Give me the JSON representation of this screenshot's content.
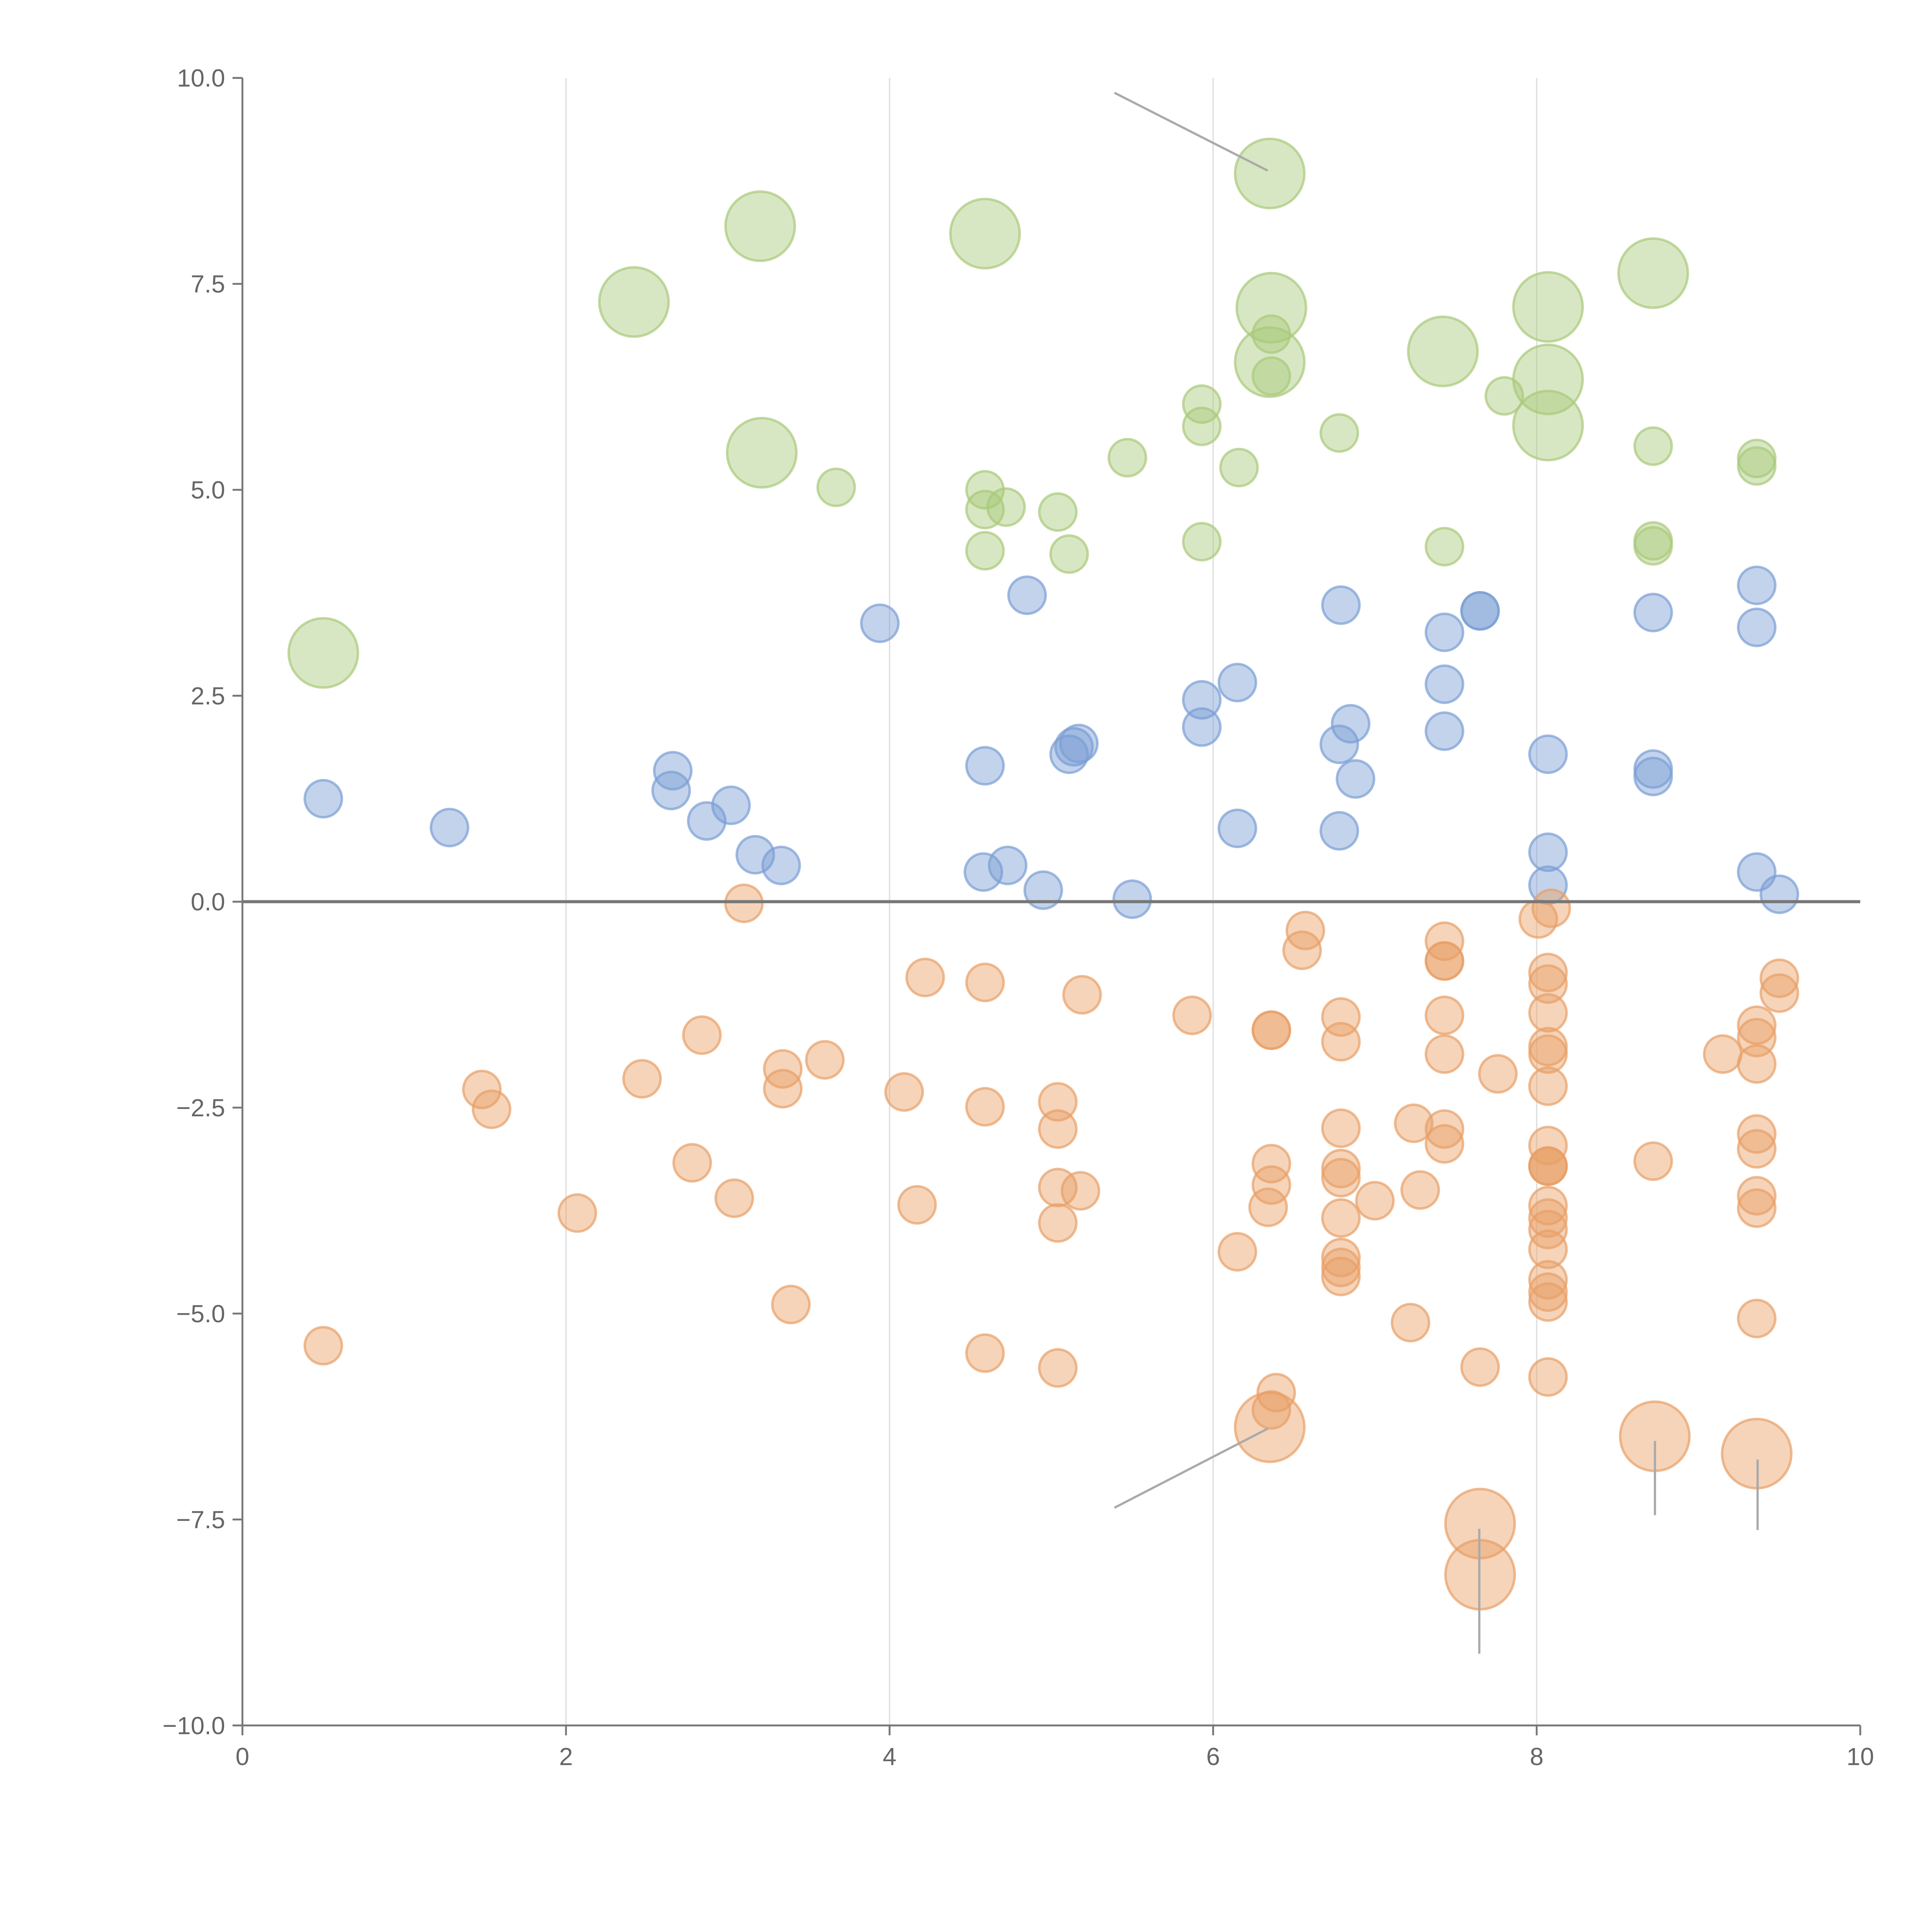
{
  "chart_data": {
    "type": "scatter",
    "title": "",
    "xlabel": "",
    "ylabel": "",
    "xlim": [
      0,
      10
    ],
    "ylim": [
      -10,
      10
    ],
    "grid": "vertical",
    "x_ticks": [
      "0",
      "2",
      "4",
      "6",
      "8",
      "10"
    ],
    "x_tick_values": [
      0,
      2,
      4,
      6,
      8,
      10
    ],
    "y_ticks": [
      "10.0",
      "7.5",
      "5.0",
      "2.5",
      "0.0",
      "−2.5",
      "−5.0",
      "−7.5",
      "−10.0"
    ],
    "y_tick_values": [
      10,
      7.5,
      5,
      2.5,
      0,
      -2.5,
      -5,
      -7.5,
      -10
    ],
    "reference_line_y": 0,
    "series": [
      {
        "name": "green",
        "color": "#a9c97a",
        "points": [
          [
            0.5,
            3.02,
            2
          ],
          [
            2.42,
            7.28,
            2
          ],
          [
            3.2,
            8.2,
            2
          ],
          [
            4.59,
            8.11,
            2
          ],
          [
            6.35,
            8.84,
            2
          ],
          [
            6.36,
            7.21,
            2
          ],
          [
            6.35,
            6.55,
            2
          ],
          [
            7.42,
            6.68,
            2
          ],
          [
            8.07,
            7.22,
            2
          ],
          [
            8.07,
            6.34,
            2
          ],
          [
            8.07,
            5.78,
            2
          ],
          [
            8.72,
            7.63,
            2
          ],
          [
            3.21,
            5.45,
            2
          ],
          [
            6.36,
            6.89,
            1
          ],
          [
            6.36,
            6.38,
            1
          ],
          [
            7.8,
            6.14,
            1
          ],
          [
            6.78,
            5.69,
            1
          ],
          [
            5.93,
            6.04,
            1
          ],
          [
            5.93,
            5.77,
            1
          ],
          [
            6.16,
            5.27,
            1
          ],
          [
            5.47,
            5.39,
            1
          ],
          [
            3.67,
            5.03,
            1
          ],
          [
            4.59,
            5.0,
            1
          ],
          [
            4.59,
            4.76,
            1
          ],
          [
            4.72,
            4.79,
            1
          ],
          [
            5.04,
            4.73,
            1
          ],
          [
            5.11,
            4.22,
            1
          ],
          [
            4.59,
            4.26,
            1
          ],
          [
            5.93,
            4.37,
            1
          ],
          [
            7.43,
            4.31,
            1
          ],
          [
            8.72,
            5.53,
            1
          ],
          [
            9.36,
            5.38,
            1
          ],
          [
            9.36,
            5.29,
            1
          ],
          [
            8.72,
            4.38,
            1
          ],
          [
            8.72,
            4.32,
            1
          ]
        ]
      },
      {
        "name": "blue",
        "color": "#7b9ed4",
        "points": [
          [
            0.5,
            1.25,
            1
          ],
          [
            1.28,
            0.9,
            1
          ],
          [
            2.66,
            1.59,
            1
          ],
          [
            2.65,
            1.35,
            1
          ],
          [
            2.87,
            0.98,
            1
          ],
          [
            3.02,
            1.17,
            1
          ],
          [
            3.17,
            0.57,
            1
          ],
          [
            3.33,
            0.44,
            1
          ],
          [
            3.94,
            3.38,
            1
          ],
          [
            4.85,
            3.72,
            1
          ],
          [
            4.59,
            1.65,
            1
          ],
          [
            4.58,
            0.36,
            1
          ],
          [
            4.73,
            0.44,
            1
          ],
          [
            4.95,
            0.14,
            1
          ],
          [
            5.11,
            1.79,
            1
          ],
          [
            5.14,
            1.88,
            1
          ],
          [
            5.17,
            1.92,
            1
          ],
          [
            5.5,
            0.03,
            1
          ],
          [
            5.93,
            2.45,
            1
          ],
          [
            5.93,
            2.12,
            1
          ],
          [
            6.15,
            2.66,
            1
          ],
          [
            6.15,
            0.89,
            1
          ],
          [
            6.79,
            3.6,
            1
          ],
          [
            6.85,
            2.16,
            1
          ],
          [
            6.78,
            1.91,
            1
          ],
          [
            6.88,
            1.49,
            1
          ],
          [
            6.78,
            0.86,
            1
          ],
          [
            7.43,
            3.27,
            1
          ],
          [
            7.43,
            2.64,
            1
          ],
          [
            7.43,
            2.07,
            1
          ],
          [
            7.65,
            3.53,
            1
          ],
          [
            7.65,
            3.53,
            1
          ],
          [
            8.07,
            1.79,
            1
          ],
          [
            8.07,
            0.6,
            1
          ],
          [
            8.07,
            0.2,
            1
          ],
          [
            8.72,
            3.51,
            1
          ],
          [
            8.72,
            1.61,
            1
          ],
          [
            8.72,
            1.52,
            1
          ],
          [
            9.36,
            3.84,
            1
          ],
          [
            9.36,
            3.33,
            1
          ],
          [
            9.36,
            0.36,
            1
          ],
          [
            9.5,
            0.09,
            1
          ]
        ]
      },
      {
        "name": "orange",
        "color": "#e8a066",
        "points": [
          [
            3.1,
            -0.02,
            1
          ],
          [
            0.5,
            -5.39,
            1
          ],
          [
            1.48,
            -2.28,
            1
          ],
          [
            1.54,
            -2.52,
            1
          ],
          [
            2.07,
            -3.78,
            1
          ],
          [
            2.47,
            -2.15,
            1
          ],
          [
            2.78,
            -3.17,
            1
          ],
          [
            2.84,
            -1.62,
            1
          ],
          [
            3.04,
            -3.6,
            1
          ],
          [
            3.34,
            -2.03,
            1
          ],
          [
            3.34,
            -2.27,
            1
          ],
          [
            3.39,
            -4.89,
            1
          ],
          [
            3.6,
            -1.92,
            1
          ],
          [
            4.09,
            -2.31,
            1
          ],
          [
            4.17,
            -3.68,
            1
          ],
          [
            4.22,
            -0.92,
            1
          ],
          [
            4.59,
            -0.98,
            1
          ],
          [
            4.59,
            -2.49,
            1
          ],
          [
            4.59,
            -5.48,
            1
          ],
          [
            5.04,
            -2.43,
            1
          ],
          [
            5.04,
            -2.76,
            1
          ],
          [
            5.04,
            -3.47,
            1
          ],
          [
            5.04,
            -3.9,
            1
          ],
          [
            5.18,
            -3.51,
            1
          ],
          [
            5.19,
            -1.13,
            1
          ],
          [
            5.04,
            -5.66,
            1
          ],
          [
            5.87,
            -1.38,
            1
          ],
          [
            6.15,
            -4.25,
            1
          ],
          [
            6.36,
            -1.56,
            1
          ],
          [
            6.36,
            -1.56,
            1
          ],
          [
            6.36,
            -3.18,
            1
          ],
          [
            6.36,
            -3.44,
            1
          ],
          [
            6.34,
            -3.71,
            1
          ],
          [
            6.39,
            -5.96,
            1
          ],
          [
            6.36,
            -6.17,
            1
          ],
          [
            6.57,
            -0.35,
            1
          ],
          [
            6.55,
            -0.59,
            1
          ],
          [
            6.79,
            -1.4,
            1
          ],
          [
            6.79,
            -1.7,
            1
          ],
          [
            6.79,
            -2.75,
            1
          ],
          [
            6.79,
            -3.24,
            1
          ],
          [
            6.79,
            -3.35,
            1
          ],
          [
            6.79,
            -3.84,
            1
          ],
          [
            6.79,
            -4.32,
            1
          ],
          [
            6.79,
            -4.44,
            1
          ],
          [
            6.79,
            -4.55,
            1
          ],
          [
            7.0,
            -3.63,
            1
          ],
          [
            7.22,
            -5.11,
            1
          ],
          [
            7.24,
            -2.69,
            1
          ],
          [
            7.28,
            -3.5,
            1
          ],
          [
            7.43,
            -0.48,
            1
          ],
          [
            7.43,
            -0.72,
            1
          ],
          [
            7.43,
            -0.72,
            1
          ],
          [
            7.43,
            -1.38,
            1
          ],
          [
            7.43,
            -1.85,
            1
          ],
          [
            7.43,
            -2.76,
            1
          ],
          [
            7.43,
            -2.94,
            1
          ],
          [
            7.65,
            -5.65,
            1
          ],
          [
            7.76,
            -2.09,
            1
          ],
          [
            8.01,
            -0.21,
            1
          ],
          [
            8.09,
            -0.08,
            1
          ],
          [
            8.07,
            -0.86,
            1
          ],
          [
            8.07,
            -1.0,
            1
          ],
          [
            8.07,
            -1.35,
            1
          ],
          [
            8.07,
            -1.76,
            1
          ],
          [
            8.07,
            -1.85,
            1
          ],
          [
            8.07,
            -2.24,
            1
          ],
          [
            8.07,
            -2.96,
            1
          ],
          [
            8.07,
            -3.21,
            1
          ],
          [
            8.07,
            -3.21,
            1
          ],
          [
            8.07,
            -3.21,
            1
          ],
          [
            8.07,
            -3.69,
            1
          ],
          [
            8.07,
            -3.84,
            1
          ],
          [
            8.07,
            -3.98,
            1
          ],
          [
            8.07,
            -4.22,
            1
          ],
          [
            8.07,
            -4.59,
            1
          ],
          [
            8.07,
            -4.74,
            1
          ],
          [
            8.07,
            -4.86,
            1
          ],
          [
            8.07,
            -5.77,
            1
          ],
          [
            8.72,
            -3.15,
            1
          ],
          [
            9.15,
            -1.85,
            1
          ],
          [
            9.36,
            -1.5,
            1
          ],
          [
            9.36,
            -1.65,
            1
          ],
          [
            9.36,
            -1.97,
            1
          ],
          [
            9.36,
            -2.82,
            1
          ],
          [
            9.36,
            -3.0,
            1
          ],
          [
            9.36,
            -3.57,
            1
          ],
          [
            9.36,
            -3.72,
            1
          ],
          [
            9.36,
            -5.06,
            1
          ],
          [
            9.5,
            -0.93,
            1
          ],
          [
            9.5,
            -1.11,
            1
          ],
          [
            6.35,
            -6.38,
            2
          ],
          [
            7.65,
            -7.55,
            2
          ],
          [
            7.65,
            -8.17,
            2
          ],
          [
            8.73,
            -6.49,
            2
          ],
          [
            9.36,
            -6.7,
            2
          ]
        ]
      }
    ]
  }
}
